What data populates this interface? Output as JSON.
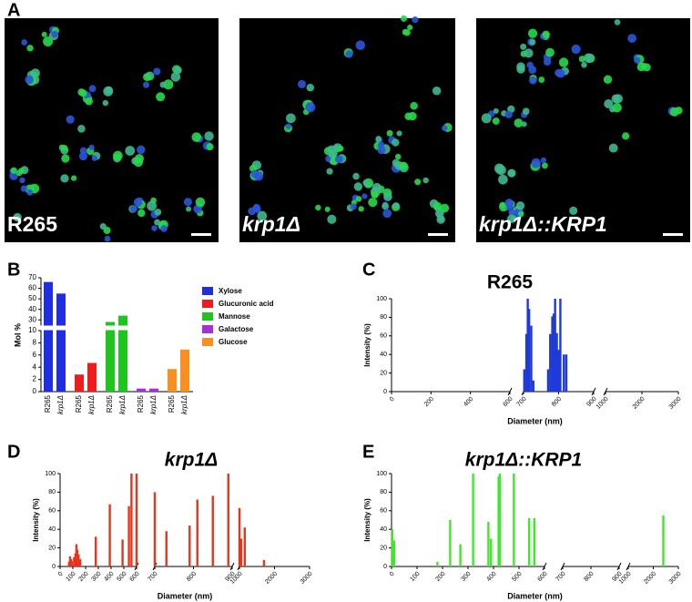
{
  "panels": [
    "A",
    "B",
    "C",
    "D",
    "E"
  ],
  "images": [
    "R265",
    "krp1Δ",
    "krp1Δ::KRP1"
  ],
  "chart_data": [
    {
      "type": "bar",
      "ylabel": "Mol %",
      "categories": [
        "R265",
        "krp1Δ"
      ],
      "series": [
        {
          "name": "Xylose",
          "color": "#1f2fe0",
          "values": [
            66,
            55
          ]
        },
        {
          "name": "Glucuronic acid",
          "color": "#ee1c1c",
          "values": [
            2.8,
            4.7
          ]
        },
        {
          "name": "Mannose",
          "color": "#1fc41f",
          "values": [
            28,
            34
          ]
        },
        {
          "name": "Galactose",
          "color": "#a72fd8",
          "values": [
            0.5,
            0.5
          ]
        },
        {
          "name": "Glucose",
          "color": "#f7901e",
          "values": [
            3.7,
            6.9
          ]
        }
      ],
      "ylim": [
        0,
        70
      ],
      "ybreak": [
        10,
        25
      ],
      "yticks": [
        0,
        2,
        4,
        6,
        8,
        10,
        30,
        40,
        50,
        60,
        70
      ],
      "legend": "right"
    },
    {
      "type": "spike",
      "title": "R265",
      "xlabel": "Diameter (nm)",
      "ylabel": "Intensity (%)",
      "color": "#1f3ad8",
      "x": [
        702,
        708,
        712,
        716,
        722,
        728,
        770,
        776,
        782,
        786,
        790,
        795,
        800,
        805,
        815,
        822
      ],
      "values": [
        24,
        62,
        100,
        89,
        71,
        12,
        24,
        62,
        81,
        84,
        100,
        63,
        45,
        100,
        40,
        40
      ],
      "xlim": [
        0,
        3000
      ],
      "xbreaks": [
        [
          600,
          700
        ],
        [
          900,
          1000
        ]
      ],
      "xticks": [
        0,
        200,
        400,
        600,
        700,
        800,
        900,
        1000,
        2000,
        3000
      ],
      "ylim": [
        0,
        100
      ],
      "yticks": [
        0,
        20,
        40,
        60,
        80,
        100
      ]
    },
    {
      "type": "spike",
      "title": "krp1Δ",
      "xlabel": "Diameter (nm)",
      "ylabel": "Intensity (%)",
      "color": "#e8341c",
      "x": [
        70,
        78,
        85,
        92,
        110,
        120,
        128,
        135,
        145,
        158,
        280,
        390,
        490,
        540,
        560,
        600,
        700,
        730,
        790,
        810,
        850,
        890,
        1000,
        1050,
        1150,
        1700
      ],
      "values": [
        5,
        11,
        8,
        6,
        10,
        14,
        24,
        18,
        13,
        8,
        32,
        67,
        29,
        65,
        100,
        100,
        80,
        38,
        44,
        72,
        76,
        100,
        63,
        30,
        42,
        7
      ],
      "xlim": [
        0,
        3000
      ],
      "xbreaks": [
        [
          600,
          700
        ],
        [
          900,
          1000
        ]
      ],
      "xticks": [
        0,
        100,
        200,
        300,
        400,
        500,
        600,
        700,
        800,
        900,
        1000,
        2000,
        3000
      ],
      "ylim": [
        0,
        100
      ],
      "yticks": [
        0,
        20,
        40,
        60,
        80,
        100
      ]
    },
    {
      "type": "spike",
      "title": "krp1Δ::KRP1",
      "xlabel": "Diameter (nm)",
      "ylabel": "Intensity (%)",
      "color": "#3ee82a",
      "x": [
        3,
        10,
        180,
        230,
        270,
        320,
        380,
        390,
        420,
        425,
        480,
        540,
        560,
        2400
      ],
      "values": [
        40,
        28,
        5,
        50,
        24,
        100,
        48,
        30,
        97,
        100,
        100,
        52,
        52,
        55
      ],
      "xlim": [
        0,
        3000
      ],
      "xbreaks": [
        [
          600,
          700
        ],
        [
          900,
          1000
        ]
      ],
      "xticks": [
        0,
        100,
        200,
        300,
        400,
        500,
        600,
        700,
        800,
        900,
        1000,
        2000,
        3000
      ],
      "ylim": [
        0,
        100
      ],
      "yticks": [
        0,
        20,
        40,
        60,
        80,
        100
      ]
    }
  ]
}
